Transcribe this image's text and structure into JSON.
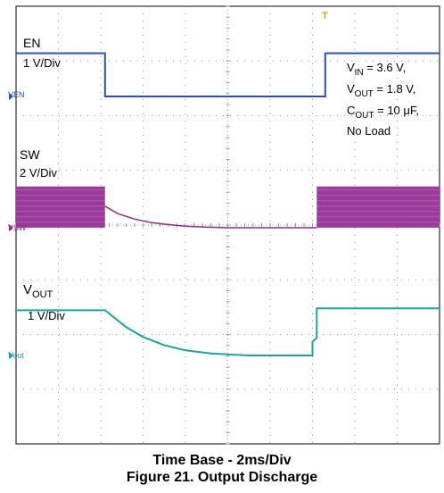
{
  "chart_data": {
    "type": "line",
    "title": "Figure 21. Output Discharge",
    "xlabel": "Time Base - 2ms/Div",
    "ylabel": "",
    "grid": true,
    "divisions": {
      "x": 10,
      "y": 8
    },
    "time_per_div_ms": 2,
    "trigger_marker": "T",
    "channels": [
      {
        "name": "EN",
        "scale": "1 V/Div",
        "marker": "VEN",
        "color": "#2b4fb5",
        "t_div": [
          0,
          2.1,
          2.1,
          7.3,
          7.3,
          10
        ],
        "level_div": [
          1.1,
          1.1,
          0,
          0,
          1.1,
          1.1
        ]
      },
      {
        "name": "SW",
        "scale": "2 V/Div",
        "marker": "VSW",
        "color": "#8e2a8c",
        "burst_color": "#9b3b99",
        "burst_ranges_div": [
          [
            0,
            2.1
          ],
          [
            7.1,
            10
          ]
        ],
        "burst_level_div": 1.05,
        "t_div": [
          2.1,
          2.4,
          2.8,
          3.2,
          3.6,
          4.0,
          4.4,
          5.0,
          7.1
        ],
        "level_div": [
          0.55,
          0.36,
          0.22,
          0.13,
          0.08,
          0.04,
          0.02,
          0.0,
          0.0
        ]
      },
      {
        "name": "V",
        "name_sub": "OUT",
        "scale": "1 V/Div",
        "marker": "Vout",
        "color": "#1aa3a0",
        "t_div": [
          0,
          2.1,
          2.3,
          2.6,
          3.0,
          3.5,
          4.0,
          4.6,
          5.5,
          7.0,
          7.0,
          7.1,
          7.1,
          10
        ],
        "level_div": [
          1.15,
          1.15,
          0.98,
          0.72,
          0.47,
          0.26,
          0.13,
          0.05,
          0.0,
          0.0,
          0.35,
          0.45,
          1.2,
          1.2
        ]
      }
    ]
  },
  "conditions": {
    "vin": {
      "main": "V",
      "sub": "IN",
      "value": " = 3.6 V,"
    },
    "vout": {
      "main": "V",
      "sub": "OUT",
      "value": " = 1.8 V,"
    },
    "cout": {
      "main": "C",
      "sub": "OUT",
      "value": " = 10 μF,"
    },
    "load": "No Load"
  },
  "colors": {
    "grid": "#9a9a9a",
    "frame": "#000000"
  }
}
